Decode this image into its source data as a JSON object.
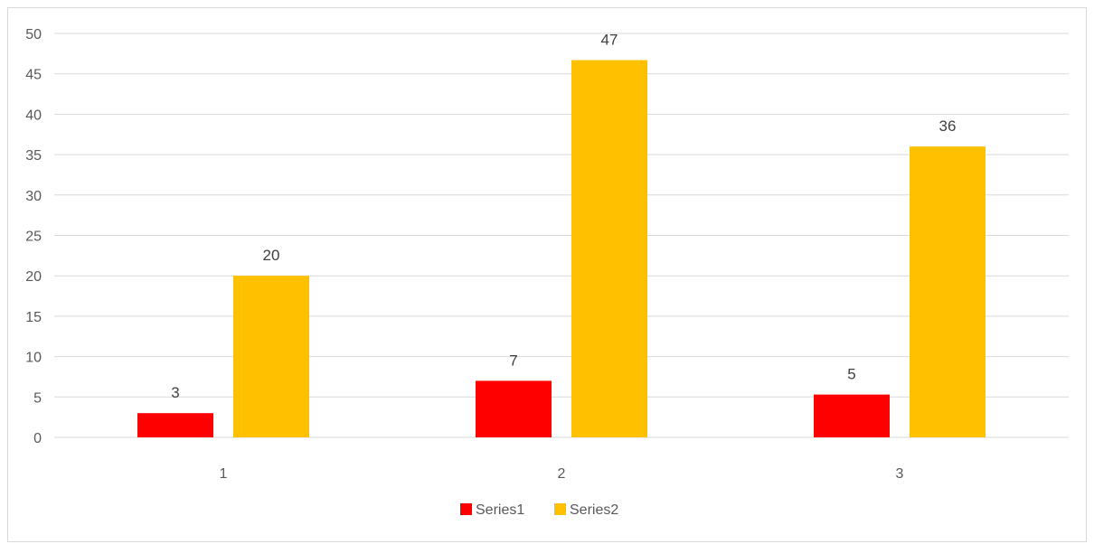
{
  "chart_data": {
    "type": "bar",
    "categories": [
      "1",
      "2",
      "3"
    ],
    "series": [
      {
        "name": "Series1",
        "values": [
          3,
          7,
          5.3
        ],
        "labels": [
          "3",
          "7",
          "5"
        ],
        "color": "#ff0000"
      },
      {
        "name": "Series2",
        "values": [
          20,
          46.7,
          36
        ],
        "labels": [
          "20",
          "47",
          "36"
        ],
        "color": "#ffc000"
      }
    ],
    "ylim": [
      0,
      50
    ],
    "yticks": [
      "0",
      "5",
      "10",
      "15",
      "20",
      "25",
      "30",
      "35",
      "40",
      "45",
      "50"
    ],
    "grid": true,
    "legend_position": "bottom",
    "gridline_color": "#d9d9d9"
  }
}
